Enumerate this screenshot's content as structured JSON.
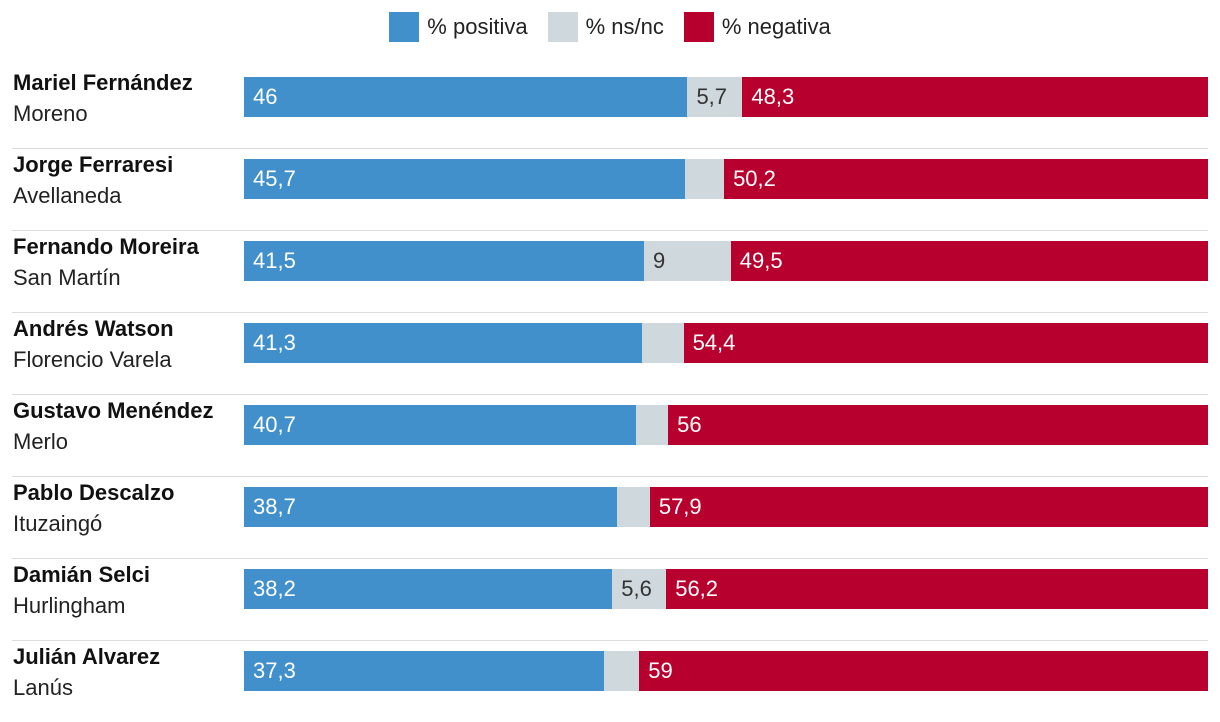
{
  "legend": [
    {
      "label": "% positiva",
      "color": "#4190cc"
    },
    {
      "label": "% ns/nc",
      "color": "#cfd8dd"
    },
    {
      "label": "% negativa",
      "color": "#b8002e"
    }
  ],
  "chart_data": {
    "type": "bar",
    "orientation": "horizontal",
    "stacked": true,
    "normalized_to": 100,
    "legend_position": "top-center",
    "categories": [
      {
        "name": "Mariel Fernández",
        "place": "Moreno"
      },
      {
        "name": "Jorge Ferraresi",
        "place": "Avellaneda"
      },
      {
        "name": "Fernando Moreira",
        "place": "San Martín"
      },
      {
        "name": "Andrés Watson",
        "place": "Florencio Varela"
      },
      {
        "name": "Gustavo Menéndez",
        "place": "Merlo"
      },
      {
        "name": "Pablo Descalzo",
        "place": "Ituzaingó"
      },
      {
        "name": "Damián Selci",
        "place": "Hurlingham"
      },
      {
        "name": "Julián Alvarez",
        "place": "Lanús"
      }
    ],
    "series": [
      {
        "name": "% positiva",
        "color": "#4190cc",
        "values": [
          46,
          45.7,
          41.5,
          41.3,
          40.7,
          38.7,
          38.2,
          37.3
        ],
        "labels": [
          "46",
          "45,7",
          "41,5",
          "41,3",
          "40,7",
          "38,7",
          "38,2",
          "37,3"
        ]
      },
      {
        "name": "% ns/nc",
        "color": "#cfd8dd",
        "values": [
          5.7,
          4.1,
          9,
          4.3,
          3.3,
          3.4,
          5.6,
          3.7
        ],
        "labels": [
          "5,7",
          "",
          "9",
          "",
          "",
          "",
          "5,6",
          ""
        ]
      },
      {
        "name": "% negativa",
        "color": "#b8002e",
        "values": [
          48.3,
          50.2,
          49.5,
          54.4,
          56,
          57.9,
          56.2,
          59
        ],
        "labels": [
          "48,3",
          "50,2",
          "49,5",
          "54,4",
          "56",
          "57,9",
          "56,2",
          "59"
        ]
      }
    ]
  }
}
